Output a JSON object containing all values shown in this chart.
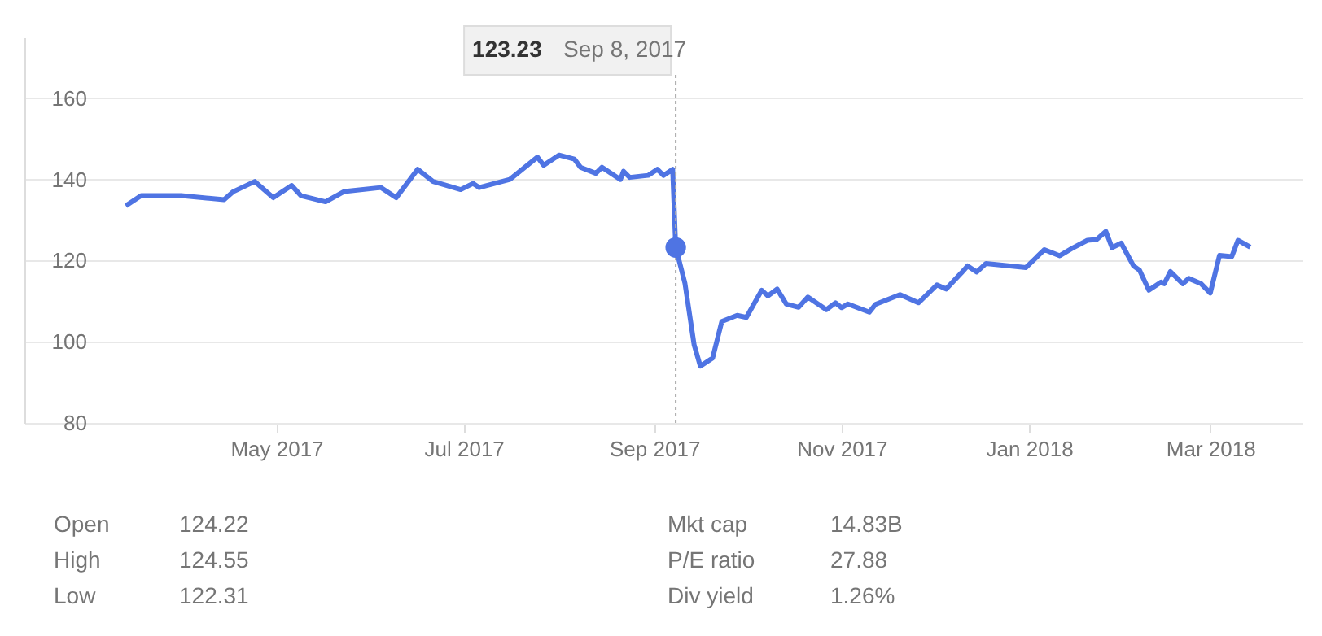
{
  "chart_data": {
    "type": "line",
    "x": [
      "2017-03-13",
      "2017-03-18",
      "2017-03-31",
      "2017-04-14",
      "2017-04-17",
      "2017-04-24",
      "2017-04-30",
      "2017-05-06",
      "2017-05-09",
      "2017-05-17",
      "2017-05-23",
      "2017-06-04",
      "2017-06-09",
      "2017-06-16",
      "2017-06-21",
      "2017-06-30",
      "2017-07-04",
      "2017-07-06",
      "2017-07-16",
      "2017-07-25",
      "2017-07-27",
      "2017-08-01",
      "2017-08-06",
      "2017-08-08",
      "2017-08-13",
      "2017-08-15",
      "2017-08-21",
      "2017-08-22",
      "2017-08-24",
      "2017-08-30",
      "2017-09-02",
      "2017-09-04",
      "2017-09-07",
      "2017-09-08",
      "2017-09-11",
      "2017-09-14",
      "2017-09-16",
      "2017-09-20",
      "2017-09-23",
      "2017-09-28",
      "2017-10-01",
      "2017-10-06",
      "2017-10-08",
      "2017-10-11",
      "2017-10-14",
      "2017-10-18",
      "2017-10-21",
      "2017-10-27",
      "2017-10-30",
      "2017-11-01",
      "2017-11-03",
      "2017-11-10",
      "2017-11-12",
      "2017-11-20",
      "2017-11-26",
      "2017-12-02",
      "2017-12-05",
      "2017-12-10",
      "2017-12-12",
      "2017-12-15",
      "2017-12-18",
      "2017-12-31",
      "2018-01-06",
      "2018-01-11",
      "2018-01-15",
      "2018-01-20",
      "2018-01-23",
      "2018-01-26",
      "2018-01-28",
      "2018-01-31",
      "2018-02-04",
      "2018-02-06",
      "2018-02-09",
      "2018-02-13",
      "2018-02-14",
      "2018-02-16",
      "2018-02-20",
      "2018-02-22",
      "2018-02-26",
      "2018-03-01",
      "2018-03-04",
      "2018-03-08",
      "2018-03-10",
      "2018-03-14"
    ],
    "series": [
      {
        "color": "#4f74e3",
        "values": [
          133.5,
          136,
          136,
          135,
          137,
          139.5,
          135.5,
          138.5,
          136,
          134.5,
          137,
          138,
          135.5,
          142.5,
          139.5,
          137.5,
          139,
          138,
          140,
          145.5,
          143.5,
          146,
          145,
          143,
          141.5,
          143,
          140,
          142,
          140.5,
          141,
          142.5,
          141,
          142.5,
          123.23,
          114.4,
          99.2,
          94,
          96,
          105,
          106.5,
          106,
          112.7,
          111.3,
          113,
          109.3,
          108.5,
          111,
          107.9,
          109.6,
          108.4,
          109.3,
          107.3,
          109.2,
          111.6,
          109.6,
          114,
          113,
          117,
          118.7,
          117.2,
          119.3,
          118.3,
          122.7,
          121.2,
          123,
          125,
          125.2,
          127.2,
          123.2,
          124.3,
          118.7,
          117.6,
          112.7,
          114.7,
          114.3,
          117.3,
          114.3,
          115.6,
          114.3,
          112,
          121.3,
          121,
          125,
          123.3
        ]
      }
    ],
    "xlim": [
      "2017-02-08",
      "2018-03-31"
    ],
    "xticks": [
      {
        "value": "2017-05-01",
        "label": "May 2017"
      },
      {
        "value": "2017-07-01",
        "label": "Jul 2017"
      },
      {
        "value": "2017-09-01",
        "label": "Sep 2017"
      },
      {
        "value": "2017-11-01",
        "label": "Nov 2017"
      },
      {
        "value": "2018-01-01",
        "label": "Jan 2018"
      },
      {
        "value": "2018-03-01",
        "label": "Mar 2018"
      }
    ],
    "ylim": [
      80,
      175
    ],
    "yticks": [
      80,
      100,
      120,
      140,
      160
    ],
    "grid": "y",
    "line_style": "solid",
    "ref_lines": [
      {
        "axis": "x",
        "value": "2017-09-08",
        "color": "#aaaaaa",
        "line_style": "dotted"
      }
    ],
    "annotations": [
      "123.23 Sep 8, 2017",
      "Open 124.22",
      "High 124.55",
      "Low 122.31",
      "Mkt cap 14.83B",
      "P/E ratio 27.88",
      "Div yield 1.26%"
    ]
  }
}
